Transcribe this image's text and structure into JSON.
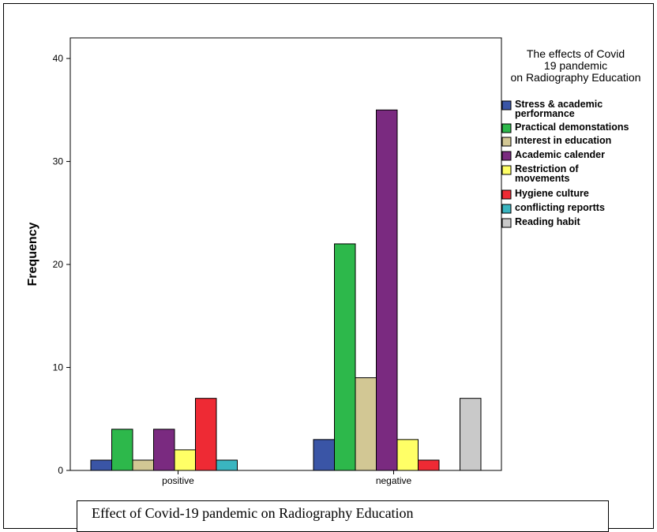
{
  "chart_data": {
    "type": "bar",
    "categories": [
      "positive",
      "negative"
    ],
    "series": [
      {
        "name": "Stress & academic performance",
        "values": [
          1,
          3
        ],
        "color": "#3a55a6"
      },
      {
        "name": "Practical demonstations",
        "values": [
          4,
          22
        ],
        "color": "#2db84b"
      },
      {
        "name": "Interest in education",
        "values": [
          1,
          9
        ],
        "color": "#d2c794"
      },
      {
        "name": "Academic calender",
        "values": [
          4,
          35
        ],
        "color": "#7a2a80"
      },
      {
        "name": "Restriction of movements",
        "values": [
          2,
          3
        ],
        "color": "#ffff66"
      },
      {
        "name": "Hygiene culture",
        "values": [
          7,
          1
        ],
        "color": "#ee2a34"
      },
      {
        "name": "conflicting reportts",
        "values": [
          1,
          0
        ],
        "color": "#3ab5c0"
      },
      {
        "name": "Reading habit",
        "values": [
          0,
          7
        ],
        "color": "#c9c9c9"
      }
    ],
    "legend_title": "The effects of Covid 19 pandemic on Radiography Education",
    "ylabel": "Frequency",
    "xlabel": "",
    "ylim": [
      0,
      42
    ],
    "yticks": [
      0,
      10,
      20,
      30,
      40
    ],
    "legend_position": "right",
    "grid": false
  },
  "caption": "Effect of Covid-19 pandemic on Radiography Education"
}
